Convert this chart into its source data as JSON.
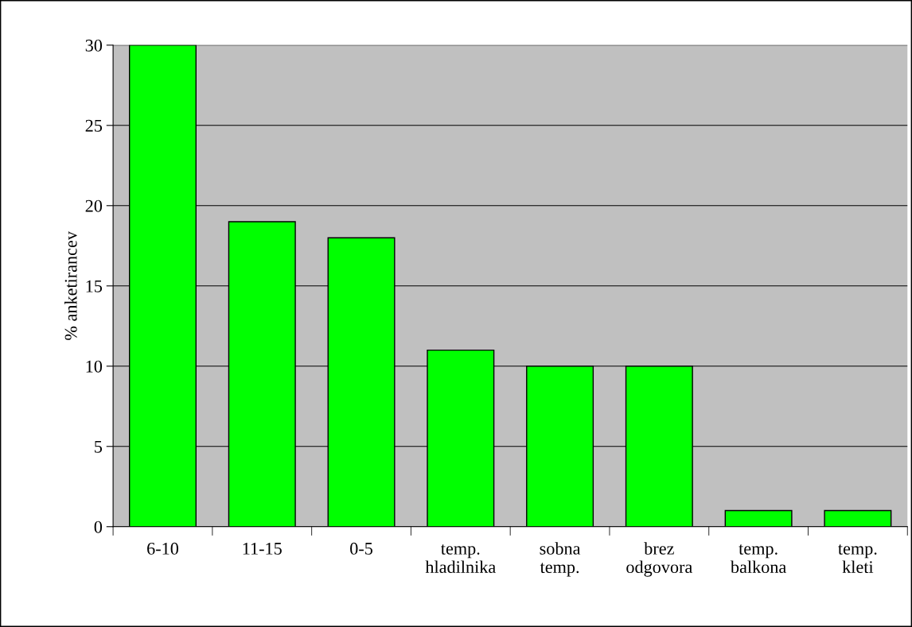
{
  "chart_data": {
    "type": "bar",
    "ylabel": "% anketirancev",
    "categories": [
      "6-10",
      "11-15",
      "0-5",
      "temp.\nhladilnika",
      "sobna\ntemp.",
      "brez\nodgovora",
      "temp.\nbalkona",
      "temp.\nkleti"
    ],
    "values": [
      30,
      19,
      18,
      11,
      10,
      10,
      1,
      1
    ],
    "color": "#00ff00",
    "ylim": [
      0,
      30
    ],
    "yticks": [
      0,
      5,
      10,
      15,
      20,
      25,
      30
    ],
    "grid": "y"
  }
}
